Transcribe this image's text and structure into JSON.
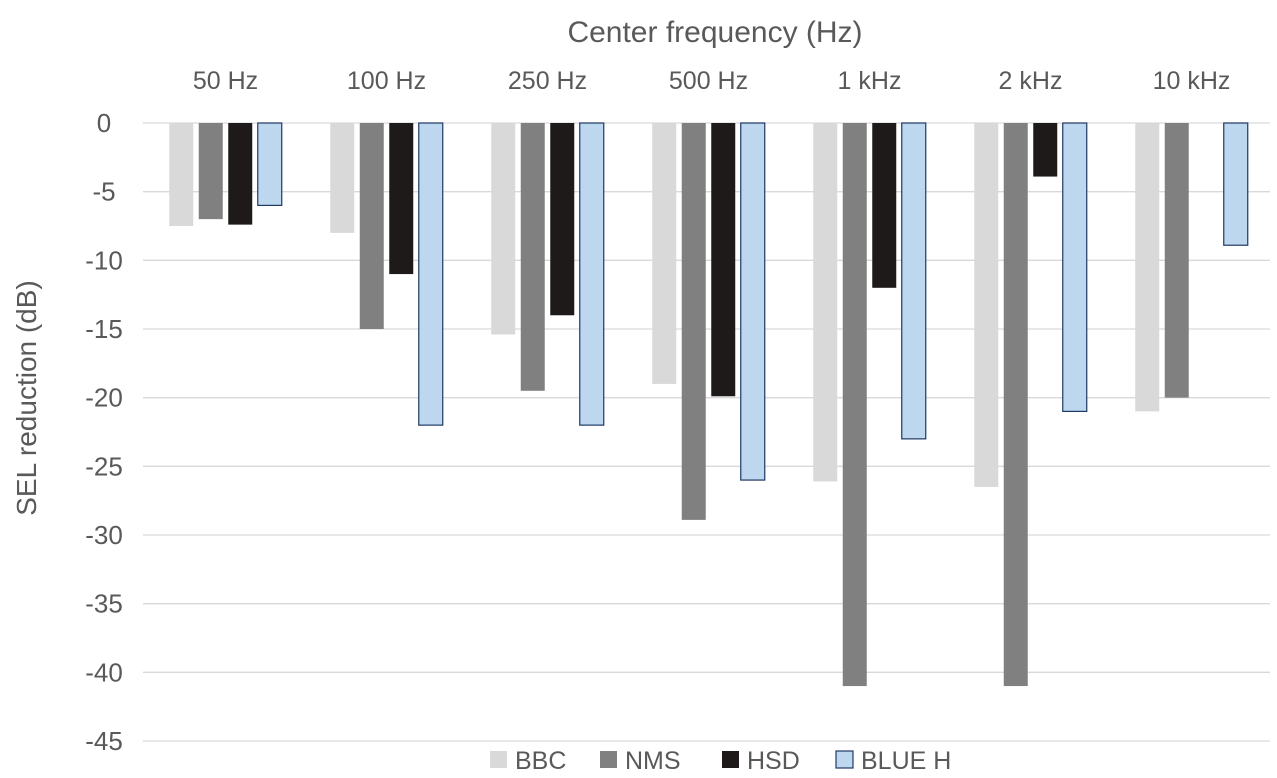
{
  "chart_data": {
    "type": "bar",
    "title": "Center frequency (Hz)",
    "xlabel": "",
    "ylabel": "SEL reduction (dB)",
    "categories": [
      "50 Hz",
      "100 Hz",
      "250 Hz",
      "500 Hz",
      "1 kHz",
      "2 kHz",
      "10 kHz"
    ],
    "series": [
      {
        "name": "BBC",
        "color": "#d9d9d9",
        "values": [
          -7.5,
          -8,
          -15.4,
          -19,
          -26.1,
          -26.5,
          -21
        ]
      },
      {
        "name": "NMS",
        "color": "#808080",
        "values": [
          -7,
          -15,
          -19.5,
          -28.9,
          -41,
          -41,
          -20
        ]
      },
      {
        "name": "HSD",
        "color": "#1f1a1a",
        "values": [
          -7.4,
          -11,
          -14,
          -19.9,
          -12,
          -3.9,
          null
        ]
      },
      {
        "name": "BLUE H",
        "color": "#bdd7ee",
        "border": "#1f3864",
        "values": [
          -6,
          -22,
          -22,
          -26,
          -23,
          -21,
          -8.9
        ]
      }
    ],
    "ylim": [
      -45,
      0
    ],
    "yticks": [
      0,
      -5,
      -10,
      -15,
      -20,
      -25,
      -30,
      -35,
      -40,
      -45
    ],
    "grid": true,
    "legend": "bottom"
  }
}
